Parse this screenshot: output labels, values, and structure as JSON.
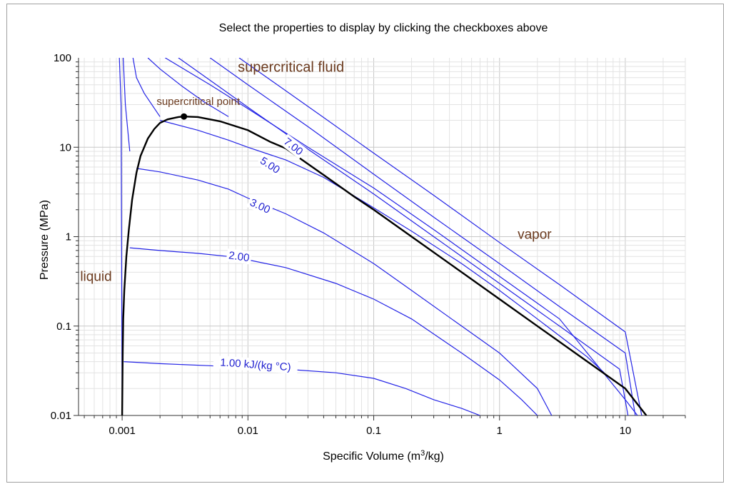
{
  "chart_data": {
    "type": "line",
    "title": "Select the properties to display by clicking the checkboxes above",
    "xlabel": "Specific Volume (m",
    "xlabel_sup": "3",
    "xlabel_tail": "/kg)",
    "ylabel": "Pressure (MPa)",
    "xscale": "log",
    "yscale": "log",
    "xlim": [
      0.00045,
      30
    ],
    "ylim": [
      0.01,
      100
    ],
    "x_ticks": [
      {
        "value": 0.001,
        "label": "0.001"
      },
      {
        "value": 0.01,
        "label": "0.01"
      },
      {
        "value": 0.1,
        "label": "0.1"
      },
      {
        "value": 1,
        "label": "1"
      },
      {
        "value": 10,
        "label": "10"
      }
    ],
    "y_ticks": [
      {
        "value": 0.01,
        "label": "0.01"
      },
      {
        "value": 0.1,
        "label": "0.1"
      },
      {
        "value": 1,
        "label": "1"
      },
      {
        "value": 10,
        "label": "10"
      },
      {
        "value": 100,
        "label": "100"
      }
    ],
    "grid": true,
    "colors": {
      "isentrope": "#2424e6",
      "dome": "#000000",
      "region": "#6b3a1e"
    },
    "saturation_dome": {
      "liquid_x": [
        0.001,
        0.00101,
        0.00102,
        0.00104,
        0.00108,
        0.00113,
        0.0012,
        0.0013,
        0.0014,
        0.0016,
        0.0018,
        0.002,
        0.0023,
        0.0028,
        0.0031
      ],
      "liquid_y": [
        0.01,
        0.05,
        0.12,
        0.25,
        0.6,
        1.2,
        2.6,
        5.2,
        8.0,
        12.5,
        16.0,
        18.7,
        20.5,
        21.8,
        22.06
      ],
      "vapor_x": [
        0.0031,
        0.004,
        0.006,
        0.01,
        0.015,
        0.02,
        0.04,
        0.07,
        0.1,
        0.2,
        0.5,
        1,
        2,
        5,
        10,
        14.7
      ],
      "vapor_y": [
        22.06,
        21.8,
        19.5,
        15.5,
        11.5,
        9.7,
        4.9,
        2.8,
        2.0,
        1.0,
        0.4,
        0.2,
        0.1,
        0.04,
        0.02,
        0.01
      ]
    },
    "critical_point": {
      "x": 0.0031,
      "y": 22.06,
      "label": "supercritical point"
    },
    "regions": [
      {
        "label": "supercritical fluid",
        "x": 0.022,
        "y": 70
      },
      {
        "label": "vapor",
        "x": 1.9,
        "y": 0.95
      },
      {
        "label": "liquid",
        "x": 0.00062,
        "y": 0.32
      }
    ],
    "series": [
      {
        "name": "1.00 kJ/(kg °C)",
        "label_x": 0.0115,
        "label_y": 0.037,
        "x": [
          0.00103,
          0.002,
          0.005,
          0.01,
          0.02,
          0.05,
          0.1,
          0.18,
          0.3,
          0.5,
          0.7
        ],
        "y": [
          0.04,
          0.038,
          0.036,
          0.034,
          0.033,
          0.03,
          0.026,
          0.02,
          0.015,
          0.012,
          0.01
        ]
      },
      {
        "name": "2.00",
        "label_x": 0.0085,
        "label_y": 0.6,
        "x": [
          0.00115,
          0.002,
          0.004,
          0.007,
          0.01,
          0.02,
          0.05,
          0.1,
          0.2,
          0.5,
          1,
          1.5,
          2
        ],
        "y": [
          0.75,
          0.7,
          0.65,
          0.6,
          0.55,
          0.45,
          0.3,
          0.2,
          0.12,
          0.05,
          0.025,
          0.015,
          0.01
        ]
      },
      {
        "name": "3.00",
        "label_x": 0.0125,
        "label_y": 2.2,
        "x": [
          0.0013,
          0.002,
          0.004,
          0.007,
          0.01,
          0.02,
          0.04,
          0.1,
          0.2,
          0.5,
          1,
          2,
          2.6
        ],
        "y": [
          5.8,
          5.3,
          4.3,
          3.4,
          2.7,
          1.8,
          1.1,
          0.5,
          0.25,
          0.1,
          0.05,
          0.02,
          0.01
        ]
      },
      {
        "name": "5.00",
        "label_x": 0.015,
        "label_y": 6.3,
        "x": [
          0.002,
          0.004,
          0.007,
          0.01,
          0.02,
          0.04,
          0.1,
          0.2,
          0.5,
          1,
          2,
          5,
          6.8
        ],
        "y": [
          20,
          15.5,
          12,
          10,
          7.2,
          4.6,
          2.1,
          1.15,
          0.5,
          0.25,
          0.12,
          0.045,
          0.03
        ]
      },
      {
        "name": "7.00",
        "label_x": 0.023,
        "label_y": 10.2,
        "x": [
          0.0022,
          0.005,
          0.01,
          0.03,
          0.1,
          0.3,
          1,
          3,
          10,
          12.5
        ],
        "y": [
          100,
          50,
          27,
          10,
          3.5,
          1.2,
          0.36,
          0.12,
          0.015,
          0.01
        ]
      }
    ],
    "extra_curves": [
      {
        "x": [
          0.00095,
          0.00098,
          0.001
        ],
        "y": [
          100,
          30,
          0.01
        ]
      },
      {
        "x": [
          0.00102,
          0.00106,
          0.00115
        ],
        "y": [
          100,
          30,
          9.0
        ]
      },
      {
        "x": [
          0.00122,
          0.0013,
          0.0015,
          0.002
        ],
        "y": [
          100,
          60,
          40,
          22
        ]
      },
      {
        "x": [
          0.0016,
          0.002,
          0.003,
          0.0045,
          0.007
        ],
        "y": [
          100,
          75,
          48,
          32,
          22
        ]
      },
      {
        "x": [
          0.0028,
          0.005,
          0.01,
          0.03,
          0.1,
          0.3,
          1,
          3,
          9,
          10.5
        ],
        "y": [
          100,
          56,
          28,
          9.5,
          3,
          1,
          0.3,
          0.1,
          0.033,
          0.01
        ]
      },
      {
        "x": [
          0.005,
          0.01,
          0.03,
          0.1,
          0.3,
          1,
          3,
          10,
          12
        ],
        "y": [
          100,
          50,
          17,
          5,
          1.65,
          0.5,
          0.165,
          0.05,
          0.01
        ]
      },
      {
        "x": [
          0.0085,
          0.015,
          0.04,
          0.1,
          0.3,
          1,
          3,
          10,
          13.5
        ],
        "y": [
          100,
          57,
          21.5,
          8.6,
          2.9,
          0.86,
          0.29,
          0.086,
          0.01
        ]
      }
    ]
  }
}
